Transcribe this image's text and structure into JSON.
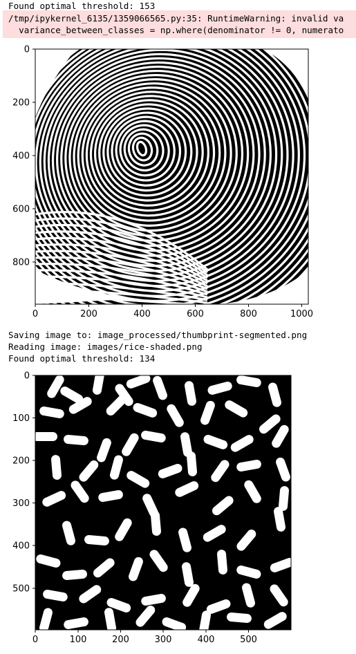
{
  "output": {
    "line1": "Found optimal threshold: 153",
    "warning_line1": "/tmp/ipykernel_6135/1359066565.py:35: RuntimeWarning: invalid va",
    "warning_line2": "  variance_between_classes = np.where(denominator != 0, numerato",
    "line_saving": "Saving image to: image_processed/thumbprint-segmented.png",
    "line_reading": "Reading image: images/rice-shaded.png",
    "line_threshold2": "Found optimal threshold: 134"
  },
  "plot1": {
    "x_ticks": [
      "0",
      "200",
      "400",
      "600",
      "800",
      "1000"
    ],
    "y_ticks": [
      "0",
      "200",
      "400",
      "600",
      "800"
    ],
    "image": "thumbprint-segmented-binary"
  },
  "plot2": {
    "x_ticks": [
      "0",
      "100",
      "200",
      "300",
      "400",
      "500"
    ],
    "y_ticks": [
      "0",
      "100",
      "200",
      "300",
      "400",
      "500"
    ],
    "image": "rice-shaded-segmented-binary"
  },
  "colors": {
    "stderr_bg": "#fddddd",
    "foreground": "#000000",
    "background": "#ffffff"
  }
}
